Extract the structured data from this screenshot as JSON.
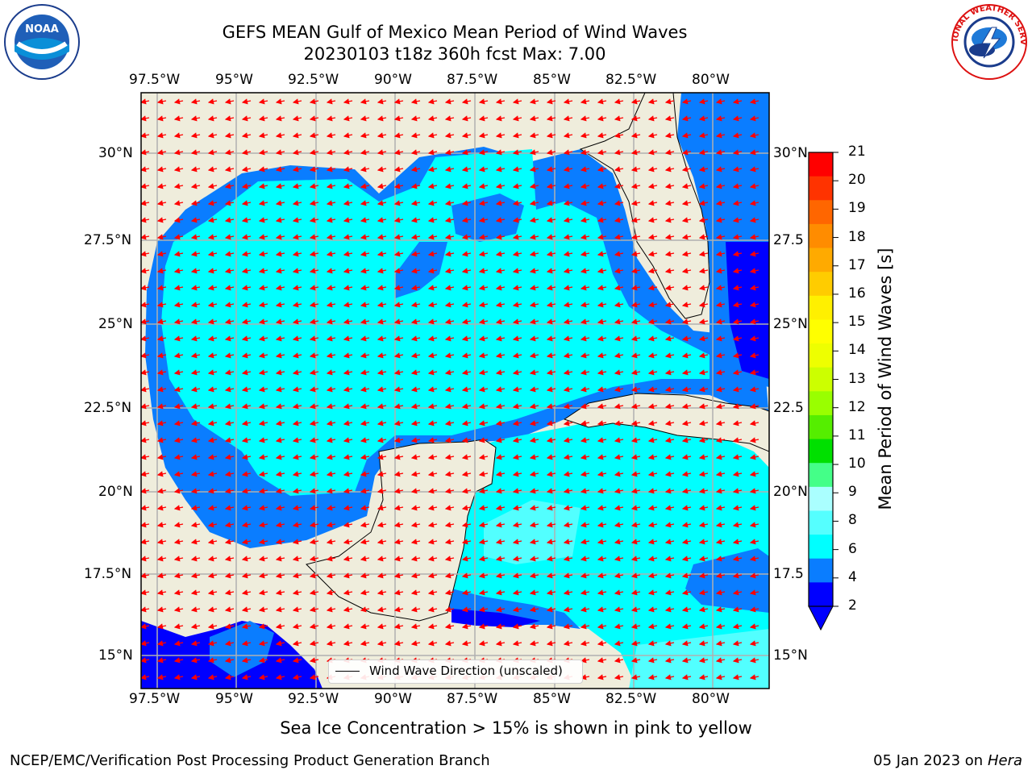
{
  "header": {
    "title_line1": "GEFS MEAN Gulf of Mexico Mean Period of Wind Waves",
    "title_line2": "20230103 t18z 360h fcst   Max: 7.00"
  },
  "logos": {
    "left": {
      "icon": "noaa-logo-icon",
      "text": "NOAA"
    },
    "right": {
      "icon": "nws-logo-icon",
      "text": "NATIONAL WEATHER SERVICE"
    }
  },
  "map": {
    "lon_labels": [
      "97.5°W",
      "95°W",
      "92.5°W",
      "90°W",
      "87.5°W",
      "85°W",
      "82.5°W",
      "80°W"
    ],
    "lat_labels_left": [
      "30°N",
      "27.5°N",
      "25°N",
      "22.5°N",
      "20°N",
      "17.5°N",
      "15°N"
    ],
    "lat_labels_right": [
      "30°N",
      "27.5",
      "25°N",
      "22.5",
      "20°N",
      "17.5",
      "15°N"
    ],
    "legend_label": "Wind Wave Direction (unscaled)",
    "colors": {
      "land": "#efeddc",
      "ocean_2_4": "#0a7dff",
      "ocean_4_6": "#00ffff",
      "ocean_6_8": "#52ffff",
      "ocean_lt2": "#0000ff",
      "arrows": "#ff0000",
      "grid": "#b0b0b0"
    }
  },
  "colorbar": {
    "label": "Mean Period of Wind Waves [s]",
    "ticks": [
      "21",
      "20",
      "19",
      "18",
      "17",
      "16",
      "15",
      "14",
      "13",
      "12",
      "11",
      "10",
      "9",
      "8",
      "6",
      "4",
      "2"
    ],
    "colors": [
      "#ff0000",
      "#ff3300",
      "#ff6600",
      "#ff8c00",
      "#ffaa00",
      "#ffcc00",
      "#fff000",
      "#ffff00",
      "#eeff00",
      "#ccff00",
      "#99ff00",
      "#55ee00",
      "#00e000",
      "#44ff88",
      "#aaffff",
      "#55ffff",
      "#00ffff",
      "#0a7dff",
      "#0000ff"
    ]
  },
  "note": "Sea Ice Concentration > 15% is shown in pink to yellow",
  "footer": {
    "left": "NCEP/EMC/Verification Post Processing Product Generation Branch",
    "right_date": "05 Jan 2023 on ",
    "right_host": "Hera"
  }
}
